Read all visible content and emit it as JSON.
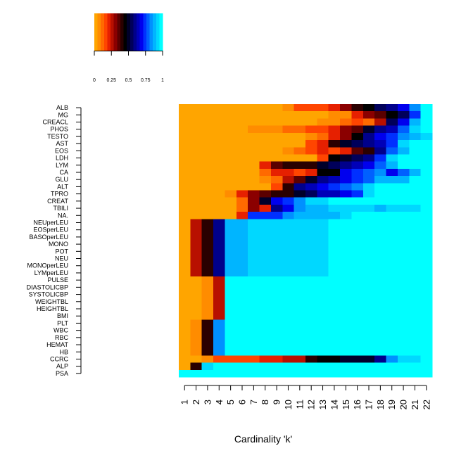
{
  "chart_data": {
    "type": "heatmap",
    "title": "",
    "xlabel": "Cardinality 'k'",
    "ylabel": "",
    "columns": [
      "1",
      "2",
      "3",
      "4",
      "5",
      "6",
      "7",
      "8",
      "9",
      "10",
      "11",
      "12",
      "13",
      "14",
      "15",
      "16",
      "17",
      "18",
      "19",
      "20",
      "21",
      "22"
    ],
    "rows": [
      "ALB",
      "MG",
      "CREACL",
      "PHOS",
      "TESTO",
      "AST",
      "EOS",
      "LDH",
      "LYM",
      "CA",
      "GLU",
      "ALT",
      "TPRO",
      "CREAT",
      "TBILI",
      "NA.",
      "NEUperLEU",
      "EOSperLEU",
      "BASOperLEU",
      "MONO",
      "POT",
      "NEU",
      "MONOperLEU",
      "LYMperLEU",
      "PULSE",
      "DIASTOLICBP",
      "SYSTOLICBP",
      "WEIGHTBL",
      "HEIGHTBL",
      "BMI",
      "PLT",
      "WBC",
      "RBC",
      "HEMAT",
      "HB",
      "CCRC",
      "ALP",
      "PSA"
    ],
    "values": [
      [
        0,
        0,
        0,
        0,
        0,
        0,
        0,
        0,
        0,
        0.05,
        0.15,
        0.15,
        0.15,
        0.2,
        0.3,
        0.4,
        0.45,
        0.55,
        0.6,
        0.7,
        0.85,
        1.0
      ],
      [
        0,
        0,
        0,
        0,
        0,
        0,
        0,
        0,
        0,
        0,
        0,
        0,
        0,
        0.05,
        0.05,
        0.2,
        0.3,
        0.35,
        0.45,
        0.55,
        0.75,
        1.0
      ],
      [
        0,
        0,
        0,
        0,
        0,
        0,
        0,
        0,
        0,
        0,
        0,
        0,
        0.05,
        0.05,
        0.1,
        0.15,
        0.1,
        0.25,
        0.55,
        0.7,
        0.9,
        1.0
      ],
      [
        0,
        0,
        0,
        0,
        0,
        0,
        0.05,
        0.05,
        0.05,
        0.1,
        0.1,
        0.15,
        0.15,
        0.2,
        0.3,
        0.35,
        0.5,
        0.6,
        0.65,
        0.8,
        0.95,
        1.0
      ],
      [
        0,
        0,
        0,
        0,
        0,
        0,
        0,
        0,
        0,
        0,
        0,
        0.05,
        0.1,
        0.2,
        0.3,
        0.45,
        0.6,
        0.7,
        0.75,
        0.85,
        0.9,
        0.95
      ],
      [
        0,
        0,
        0,
        0,
        0,
        0,
        0,
        0,
        0,
        0,
        0,
        0.15,
        0.2,
        0.4,
        0.5,
        0.55,
        0.6,
        0.65,
        0.75,
        0.95,
        1.0,
        1.0
      ],
      [
        0,
        0,
        0,
        0,
        0,
        0,
        0,
        0,
        0,
        0.05,
        0.1,
        0.15,
        0.2,
        0.15,
        0.2,
        0.35,
        0.4,
        0.6,
        0.8,
        0.9,
        1.0,
        1.0
      ],
      [
        0,
        0,
        0,
        0,
        0,
        0,
        0,
        0,
        0,
        0,
        0,
        0,
        0.15,
        0.45,
        0.5,
        0.55,
        0.6,
        0.75,
        0.95,
        1.0,
        1.0,
        1.0
      ],
      [
        0,
        0,
        0,
        0,
        0,
        0,
        0,
        0.2,
        0.35,
        0.4,
        0.4,
        0.4,
        0.5,
        0.55,
        0.6,
        0.65,
        0.7,
        0.8,
        0.9,
        1.0,
        1.0,
        1.0
      ],
      [
        0,
        0,
        0,
        0,
        0,
        0,
        0,
        0.1,
        0.2,
        0.2,
        0.15,
        0.2,
        0.45,
        0.45,
        0.7,
        0.75,
        0.8,
        0.85,
        0.7,
        0.8,
        0.9,
        1.0
      ],
      [
        0,
        0,
        0,
        0,
        0,
        0,
        0,
        0.05,
        0.1,
        0.25,
        0.35,
        0.5,
        0.6,
        0.65,
        0.7,
        0.75,
        0.8,
        0.9,
        0.9,
        0.9,
        1.0,
        1.0
      ],
      [
        0,
        0,
        0,
        0,
        0,
        0,
        0,
        0,
        0.15,
        0.4,
        0.6,
        0.65,
        0.7,
        0.75,
        0.8,
        0.85,
        0.95,
        1.0,
        1.0,
        1.0,
        1.0,
        1.0
      ],
      [
        0,
        0,
        0,
        0,
        0.05,
        0.2,
        0.3,
        0.35,
        0.4,
        0.4,
        0.5,
        0.55,
        0.65,
        0.65,
        0.7,
        0.75,
        0.95,
        1.0,
        1.0,
        1.0,
        1.0,
        1.0
      ],
      [
        0,
        0,
        0,
        0,
        0,
        0.1,
        0.3,
        0.5,
        0.7,
        0.75,
        0.85,
        0.95,
        0.95,
        1.0,
        1.0,
        1.0,
        1.0,
        1.0,
        1.0,
        1.0,
        1.0,
        1.0
      ],
      [
        0,
        0,
        0,
        0,
        0,
        0.1,
        0.3,
        0.2,
        0.6,
        0.7,
        0.85,
        0.9,
        0.9,
        0.95,
        0.95,
        0.95,
        0.95,
        0.9,
        0.95,
        0.95,
        0.95,
        1.0
      ],
      [
        0,
        0,
        0,
        0,
        0,
        0.2,
        0.75,
        0.75,
        0.75,
        0.85,
        0.9,
        0.9,
        0.9,
        0.9,
        0.95,
        1.0,
        1.0,
        1.0,
        1.0,
        1.0,
        1.0,
        1.0
      ],
      [
        0,
        0.25,
        0.4,
        0.6,
        0.9,
        0.9,
        0.95,
        0.95,
        0.95,
        0.95,
        0.95,
        0.95,
        0.95,
        1.0,
        1.0,
        1.0,
        1.0,
        1.0,
        1.0,
        1.0,
        1.0,
        1.0
      ],
      [
        0,
        0.25,
        0.4,
        0.6,
        0.9,
        0.9,
        0.95,
        0.95,
        0.95,
        0.95,
        0.95,
        0.95,
        0.95,
        1.0,
        1.0,
        1.0,
        1.0,
        1.0,
        1.0,
        1.0,
        1.0,
        1.0
      ],
      [
        0,
        0.25,
        0.4,
        0.6,
        0.9,
        0.9,
        0.95,
        0.95,
        0.95,
        0.95,
        0.95,
        0.95,
        0.95,
        1.0,
        1.0,
        1.0,
        1.0,
        1.0,
        1.0,
        1.0,
        1.0,
        1.0
      ],
      [
        0,
        0.25,
        0.4,
        0.6,
        0.9,
        0.9,
        0.95,
        0.95,
        0.95,
        0.95,
        0.95,
        0.95,
        0.95,
        1.0,
        1.0,
        1.0,
        1.0,
        1.0,
        1.0,
        1.0,
        1.0,
        1.0
      ],
      [
        0,
        0.25,
        0.4,
        0.6,
        0.9,
        0.9,
        0.95,
        0.95,
        0.95,
        0.95,
        0.95,
        0.95,
        0.95,
        1.0,
        1.0,
        1.0,
        1.0,
        1.0,
        1.0,
        1.0,
        1.0,
        1.0
      ],
      [
        0,
        0.25,
        0.4,
        0.6,
        0.9,
        0.9,
        0.95,
        0.95,
        0.95,
        0.95,
        0.95,
        0.95,
        0.95,
        1.0,
        1.0,
        1.0,
        1.0,
        1.0,
        1.0,
        1.0,
        1.0,
        1.0
      ],
      [
        0,
        0.25,
        0.4,
        0.6,
        0.9,
        0.9,
        0.95,
        0.95,
        0.95,
        0.95,
        0.95,
        0.95,
        0.95,
        1.0,
        1.0,
        1.0,
        1.0,
        1.0,
        1.0,
        1.0,
        1.0,
        1.0
      ],
      [
        0,
        0.25,
        0.4,
        0.6,
        0.9,
        0.9,
        0.95,
        0.95,
        0.95,
        0.95,
        0.95,
        0.95,
        0.95,
        1.0,
        1.0,
        1.0,
        1.0,
        1.0,
        1.0,
        1.0,
        1.0,
        1.0
      ],
      [
        0,
        0,
        0.05,
        0.25,
        1.0,
        1.0,
        1.0,
        1.0,
        1.0,
        1.0,
        1.0,
        1.0,
        1.0,
        1.0,
        1.0,
        1.0,
        1.0,
        1.0,
        1.0,
        1.0,
        1.0,
        1.0
      ],
      [
        0,
        0,
        0.05,
        0.25,
        1.0,
        1.0,
        1.0,
        1.0,
        1.0,
        1.0,
        1.0,
        1.0,
        1.0,
        1.0,
        1.0,
        1.0,
        1.0,
        1.0,
        1.0,
        1.0,
        1.0,
        1.0
      ],
      [
        0,
        0,
        0.05,
        0.25,
        1.0,
        1.0,
        1.0,
        1.0,
        1.0,
        1.0,
        1.0,
        1.0,
        1.0,
        1.0,
        1.0,
        1.0,
        1.0,
        1.0,
        1.0,
        1.0,
        1.0,
        1.0
      ],
      [
        0,
        0,
        0.05,
        0.25,
        1.0,
        1.0,
        1.0,
        1.0,
        1.0,
        1.0,
        1.0,
        1.0,
        1.0,
        1.0,
        1.0,
        1.0,
        1.0,
        1.0,
        1.0,
        1.0,
        1.0,
        1.0
      ],
      [
        0,
        0,
        0.05,
        0.25,
        1.0,
        1.0,
        1.0,
        1.0,
        1.0,
        1.0,
        1.0,
        1.0,
        1.0,
        1.0,
        1.0,
        1.0,
        1.0,
        1.0,
        1.0,
        1.0,
        1.0,
        1.0
      ],
      [
        0,
        0,
        0.05,
        0.25,
        1.0,
        1.0,
        1.0,
        1.0,
        1.0,
        1.0,
        1.0,
        1.0,
        1.0,
        1.0,
        1.0,
        1.0,
        1.0,
        1.0,
        1.0,
        1.0,
        1.0,
        1.0
      ],
      [
        0,
        0.05,
        0.4,
        0.85,
        1.0,
        1.0,
        1.0,
        1.0,
        1.0,
        1.0,
        1.0,
        1.0,
        1.0,
        1.0,
        1.0,
        1.0,
        1.0,
        1.0,
        1.0,
        1.0,
        1.0,
        1.0
      ],
      [
        0,
        0.05,
        0.4,
        0.85,
        1.0,
        1.0,
        1.0,
        1.0,
        1.0,
        1.0,
        1.0,
        1.0,
        1.0,
        1.0,
        1.0,
        1.0,
        1.0,
        1.0,
        1.0,
        1.0,
        1.0,
        1.0
      ],
      [
        0,
        0.05,
        0.4,
        0.85,
        1.0,
        1.0,
        1.0,
        1.0,
        1.0,
        1.0,
        1.0,
        1.0,
        1.0,
        1.0,
        1.0,
        1.0,
        1.0,
        1.0,
        1.0,
        1.0,
        1.0,
        1.0
      ],
      [
        0,
        0.05,
        0.4,
        0.85,
        1.0,
        1.0,
        1.0,
        1.0,
        1.0,
        1.0,
        1.0,
        1.0,
        1.0,
        1.0,
        1.0,
        1.0,
        1.0,
        1.0,
        1.0,
        1.0,
        1.0,
        1.0
      ],
      [
        0,
        0.05,
        0.4,
        0.85,
        1.0,
        1.0,
        1.0,
        1.0,
        1.0,
        1.0,
        1.0,
        1.0,
        1.0,
        1.0,
        1.0,
        1.0,
        1.0,
        1.0,
        1.0,
        1.0,
        1.0,
        1.0
      ],
      [
        0,
        0,
        0.05,
        0.15,
        0.15,
        0.15,
        0.15,
        0.2,
        0.2,
        0.25,
        0.25,
        0.4,
        0.45,
        0.45,
        0.5,
        0.5,
        0.5,
        0.6,
        0.85,
        0.95,
        0.95,
        1.0
      ],
      [
        0,
        0.4,
        0.95,
        1.0,
        1.0,
        1.0,
        1.0,
        1.0,
        1.0,
        1.0,
        1.0,
        1.0,
        1.0,
        1.0,
        1.0,
        1.0,
        1.0,
        1.0,
        1.0,
        1.0,
        1.0,
        1.0
      ],
      [
        1.0,
        1.0,
        1.0,
        1.0,
        1.0,
        1.0,
        1.0,
        1.0,
        1.0,
        1.0,
        1.0,
        1.0,
        1.0,
        1.0,
        1.0,
        1.0,
        1.0,
        1.0,
        1.0,
        1.0,
        1.0,
        1.0
      ]
    ],
    "value_range": [
      0,
      1
    ],
    "colorbar": {
      "ticks": [
        0,
        0.25,
        0.5,
        0.75,
        1
      ],
      "tick_labels": [
        "0",
        "0.25",
        "0.5",
        "0.75",
        "1"
      ],
      "colors": [
        "#ffa500",
        "#ff8c00",
        "#ff6a00",
        "#ff4500",
        "#e62000",
        "#b81000",
        "#8b0000",
        "#5a0000",
        "#2a0000",
        "#000000",
        "#00002a",
        "#00005a",
        "#00008b",
        "#0000b8",
        "#0000ee",
        "#0030ff",
        "#0060ff",
        "#0090ff",
        "#00b5ff",
        "#00d8ff",
        "#00ffff"
      ]
    },
    "legend_position": "top-left",
    "grid": false
  }
}
